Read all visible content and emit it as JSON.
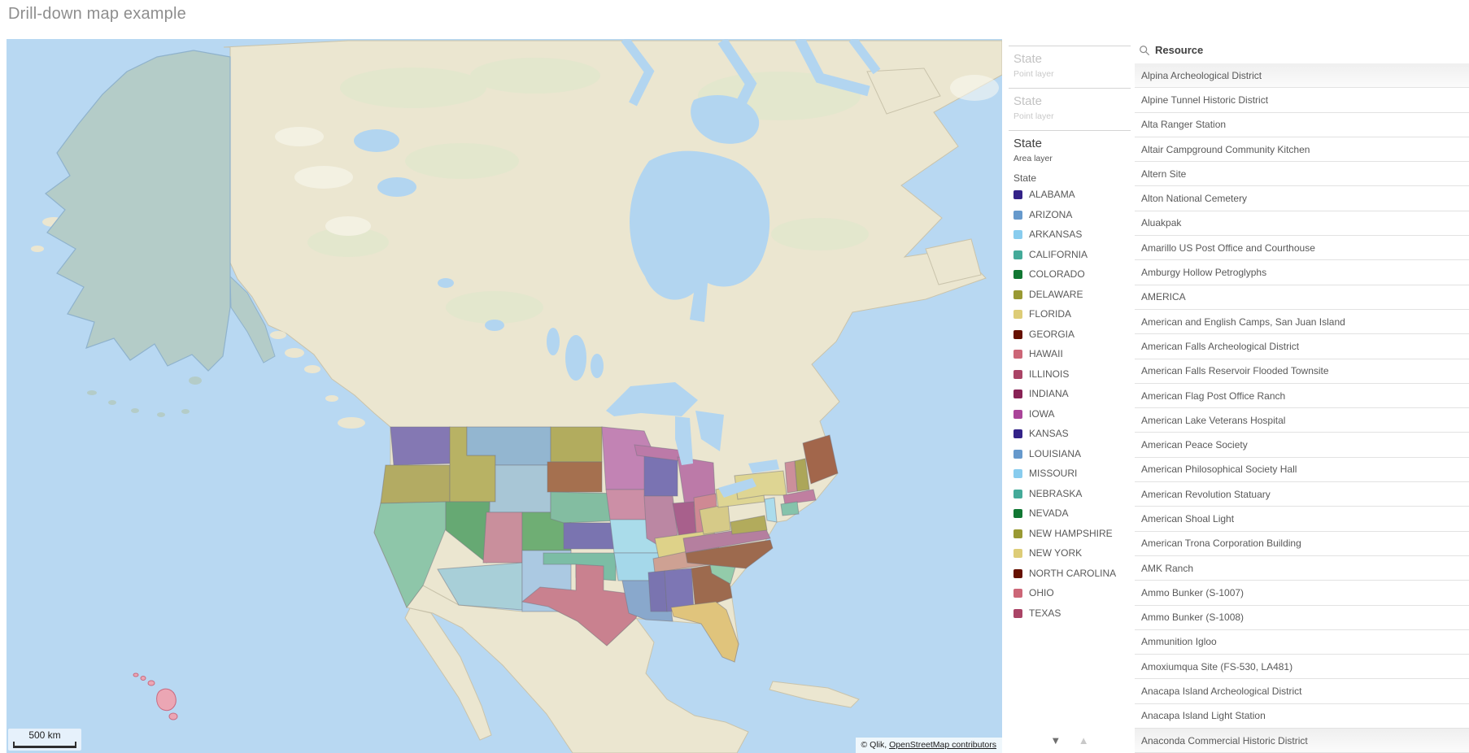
{
  "title": "Drill-down map example",
  "map": {
    "scale_label": "500 km",
    "attribution_prefix": "© Qlik, ",
    "attribution_link": "OpenStreetMap contributors",
    "colors": {
      "ocean": "#b8d8f2",
      "land": "#ebe6d0",
      "land_border": "#c9c3ab",
      "forest": "#dde8cb",
      "snow": "#fafaf2",
      "lake": "#b2d5f0",
      "alaska": "#b4ccc8",
      "alaska_border": "#8fb2cc",
      "state_border": "#73737f",
      "hawaii_fill": "#eba6b4",
      "hawaii_border": "#c96a80"
    },
    "states": [
      {
        "id": "WA",
        "name": "Washington",
        "color": "#8478b3"
      },
      {
        "id": "OR",
        "name": "Oregon",
        "color": "#b3ab63"
      },
      {
        "id": "CA",
        "name": "California",
        "color": "#8ec6a9"
      },
      {
        "id": "ID",
        "name": "Idaho",
        "color": "#b8b264"
      },
      {
        "id": "MT",
        "name": "Montana",
        "color": "#93b6d0"
      },
      {
        "id": "WY",
        "name": "Wyoming",
        "color": "#a8c6d6"
      },
      {
        "id": "NV",
        "name": "Nevada",
        "color": "#66a973"
      },
      {
        "id": "UT",
        "name": "Utah",
        "color": "#c98f9c"
      },
      {
        "id": "CO",
        "name": "Colorado",
        "color": "#6fae74"
      },
      {
        "id": "AZ",
        "name": "Arizona",
        "color": "#a8cfd8"
      },
      {
        "id": "NM",
        "name": "New Mexico",
        "color": "#abc9e2"
      },
      {
        "id": "ND",
        "name": "North Dakota",
        "color": "#b2ac5e"
      },
      {
        "id": "SD",
        "name": "South Dakota",
        "color": "#a5704f"
      },
      {
        "id": "NE",
        "name": "Nebraska",
        "color": "#83bda1"
      },
      {
        "id": "KS",
        "name": "Kansas",
        "color": "#7a74b0"
      },
      {
        "id": "OK",
        "name": "Oklahoma",
        "color": "#7cbda5"
      },
      {
        "id": "TX",
        "name": "Texas",
        "color": "#c9818f"
      },
      {
        "id": "MN",
        "name": "Minnesota",
        "color": "#c283b4"
      },
      {
        "id": "IA",
        "name": "Iowa",
        "color": "#cc8fa6"
      },
      {
        "id": "MO",
        "name": "Missouri",
        "color": "#aadcea"
      },
      {
        "id": "AR",
        "name": "Arkansas",
        "color": "#a5d8ea"
      },
      {
        "id": "LA",
        "name": "Louisiana",
        "color": "#89a8cc"
      },
      {
        "id": "WI",
        "name": "Wisconsin",
        "color": "#7a73b2"
      },
      {
        "id": "MIU",
        "name": "Michigan Upper Peninsula",
        "color": "#bc7aa8"
      },
      {
        "id": "MI",
        "name": "Michigan",
        "color": "#bc7aa8"
      },
      {
        "id": "IL",
        "name": "Illinois",
        "color": "#bb87a3"
      },
      {
        "id": "IN",
        "name": "Indiana",
        "color": "#a8608c"
      },
      {
        "id": "OH",
        "name": "Ohio",
        "color": "#cf8993"
      },
      {
        "id": "KY",
        "name": "Kentucky",
        "color": "#ded289"
      },
      {
        "id": "TN",
        "name": "Tennessee",
        "color": "#cea193"
      },
      {
        "id": "MS",
        "name": "Mississippi",
        "color": "#7a74b0"
      },
      {
        "id": "AL",
        "name": "Alabama",
        "color": "#7d76b4"
      },
      {
        "id": "GA",
        "name": "Georgia",
        "color": "#9d6a4e"
      },
      {
        "id": "SC",
        "name": "South Carolina",
        "color": "#93cbaa"
      },
      {
        "id": "NC",
        "name": "North Carolina",
        "color": "#9d6a4e"
      },
      {
        "id": "VA",
        "name": "Virginia",
        "color": "#b57f9f"
      },
      {
        "id": "WV",
        "name": "West Virginia",
        "color": "#d6ca88"
      },
      {
        "id": "PA",
        "name": "Pennsylvania",
        "color": "#ded593"
      },
      {
        "id": "NY",
        "name": "New York",
        "color": "#ded593"
      },
      {
        "id": "NJ",
        "name": "New Jersey",
        "color": "#abdcec"
      },
      {
        "id": "MD",
        "name": "Maryland",
        "color": "#b2ab5c"
      },
      {
        "id": "ME",
        "name": "Maine",
        "color": "#a2664b"
      },
      {
        "id": "NH",
        "name": "New Hampshire",
        "color": "#aca659"
      },
      {
        "id": "VT",
        "name": "Vermont",
        "color": "#cc8f9b"
      },
      {
        "id": "MA",
        "name": "Massachusetts",
        "color": "#c07fa0"
      },
      {
        "id": "CT",
        "name": "Connecticut",
        "color": "#85c3ab"
      },
      {
        "id": "FL",
        "name": "Florida",
        "color": "#e0c47c"
      }
    ]
  },
  "legend_panel": {
    "layers": [
      {
        "title": "State",
        "subtitle": "Point layer",
        "disabled": true
      },
      {
        "title": "State",
        "subtitle": "Point layer",
        "disabled": true
      },
      {
        "title": "State",
        "subtitle": "Area layer",
        "disabled": false
      }
    ],
    "dimension_label": "State",
    "items": [
      {
        "label": "ALABAMA",
        "color": "#332288"
      },
      {
        "label": "ARIZONA",
        "color": "#6699CC"
      },
      {
        "label": "ARKANSAS",
        "color": "#88CCEE"
      },
      {
        "label": "CALIFORNIA",
        "color": "#44AA99"
      },
      {
        "label": "COLORADO",
        "color": "#117733"
      },
      {
        "label": "DELAWARE",
        "color": "#999933"
      },
      {
        "label": "FLORIDA",
        "color": "#DDCC77"
      },
      {
        "label": "GEORGIA",
        "color": "#661100"
      },
      {
        "label": "HAWAII",
        "color": "#CC6677"
      },
      {
        "label": "ILLINOIS",
        "color": "#AA4466"
      },
      {
        "label": "INDIANA",
        "color": "#882255"
      },
      {
        "label": "IOWA",
        "color": "#AA4499"
      },
      {
        "label": "KANSAS",
        "color": "#332288"
      },
      {
        "label": "LOUISIANA",
        "color": "#6699CC"
      },
      {
        "label": "MISSOURI",
        "color": "#88CCEE"
      },
      {
        "label": "NEBRASKA",
        "color": "#44AA99"
      },
      {
        "label": "NEVADA",
        "color": "#117733"
      },
      {
        "label": "NEW HAMPSHIRE",
        "color": "#999933"
      },
      {
        "label": "NEW YORK",
        "color": "#DDCC77"
      },
      {
        "label": "NORTH CAROLINA",
        "color": "#661100"
      },
      {
        "label": "OHIO",
        "color": "#CC6677"
      },
      {
        "label": "TEXAS",
        "color": "#AA4466"
      }
    ],
    "scroll_down_glyph": "▼",
    "scroll_up_glyph": "▲"
  },
  "resource_panel": {
    "header": "Resource",
    "items": [
      "Alpina Archeological District",
      "Alpine Tunnel Historic District",
      "Alta Ranger Station",
      "Altair Campground Community Kitchen",
      "Altern Site",
      "Alton National Cemetery",
      "Aluakpak",
      "Amarillo US Post Office and Courthouse",
      "Amburgy Hollow Petroglyphs",
      "AMERICA",
      "American and English Camps, San Juan Island",
      "American Falls Archeological District",
      "American Falls Reservoir Flooded Townsite",
      "American Flag Post Office Ranch",
      "American Lake Veterans Hospital",
      "American Peace Society",
      "American Philosophical Society Hall",
      "American Revolution Statuary",
      "American Shoal Light",
      "American Trona Corporation Building",
      "AMK Ranch",
      "Ammo Bunker (S-1007)",
      "Ammo Bunker (S-1008)",
      "Ammunition Igloo",
      "Amoxiumqua Site (FS-530, LA481)",
      "Anacapa Island Archeological District",
      "Anacapa Island Light Station",
      "Anaconda Commercial Historic District"
    ]
  }
}
